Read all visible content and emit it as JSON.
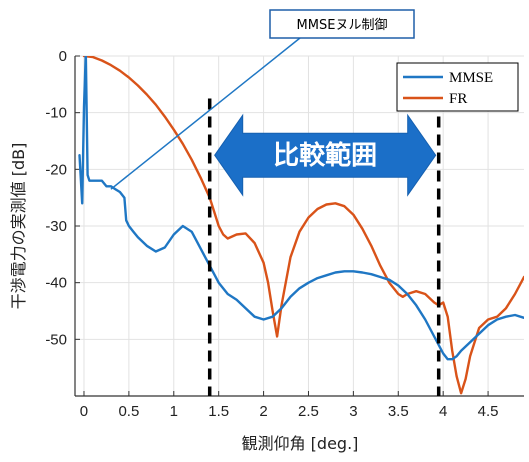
{
  "chart_data": {
    "type": "line",
    "xlabel": "観測仰角 [deg.]",
    "ylabel": "干渉電力の実測値 [dB]",
    "xlim": [
      -0.1,
      4.9
    ],
    "ylim": [
      -60,
      0
    ],
    "x_ticks": [
      0,
      0.5,
      1,
      1.5,
      2,
      2.5,
      3,
      3.5,
      4,
      4.5
    ],
    "x_tick_labels": [
      "0",
      "0.5",
      "1",
      "1.5",
      "2",
      "2.5",
      "3",
      "3.5",
      "4",
      "4.5"
    ],
    "y_ticks": [
      0,
      -10,
      -20,
      -30,
      -40,
      -50
    ],
    "y_tick_labels": [
      "0",
      "-10",
      "-20",
      "-30",
      "-40",
      "-50"
    ],
    "grid": true,
    "legend_position": "top-right",
    "series": [
      {
        "name": "MMSE",
        "color": "#1f77c4",
        "x": [
          -0.05,
          -0.02,
          0.0,
          0.02,
          0.04,
          0.06,
          0.08,
          0.1,
          0.15,
          0.2,
          0.25,
          0.3,
          0.35,
          0.4,
          0.45,
          0.47,
          0.5,
          0.55,
          0.6,
          0.7,
          0.8,
          0.9,
          1.0,
          1.1,
          1.2,
          1.3,
          1.4,
          1.5,
          1.6,
          1.7,
          1.8,
          1.9,
          2.0,
          2.1,
          2.2,
          2.3,
          2.4,
          2.5,
          2.6,
          2.7,
          2.8,
          2.9,
          3.0,
          3.1,
          3.2,
          3.3,
          3.4,
          3.5,
          3.6,
          3.7,
          3.8,
          3.9,
          4.0,
          4.05,
          4.1,
          4.15,
          4.2,
          4.3,
          4.4,
          4.5,
          4.6,
          4.7,
          4.8,
          4.9
        ],
        "y": [
          -17.5,
          -26,
          -9,
          0.5,
          -21,
          -22,
          -22,
          -22,
          -22,
          -22,
          -23,
          -23,
          -23.5,
          -24,
          -25,
          -29,
          -30,
          -31,
          -32,
          -33.5,
          -34.5,
          -33.8,
          -31.5,
          -30,
          -31,
          -34,
          -37,
          -40,
          -42,
          -43,
          -44.5,
          -46,
          -46.5,
          -46,
          -44.5,
          -42.5,
          -41,
          -40,
          -39.2,
          -38.7,
          -38.2,
          -38,
          -38,
          -38.2,
          -38.5,
          -39,
          -39.5,
          -40.5,
          -42,
          -44,
          -46.5,
          -49.5,
          -52.5,
          -53.5,
          -53.5,
          -53,
          -52,
          -50.5,
          -49,
          -47.5,
          -46.5,
          -46,
          -45.7,
          -46.2
        ]
      },
      {
        "name": "FR",
        "color": "#d95319",
        "x": [
          0.0,
          0.1,
          0.2,
          0.3,
          0.4,
          0.5,
          0.6,
          0.7,
          0.8,
          0.9,
          1.0,
          1.1,
          1.2,
          1.3,
          1.4,
          1.45,
          1.5,
          1.55,
          1.6,
          1.7,
          1.8,
          1.9,
          2.0,
          2.05,
          2.1,
          2.15,
          2.2,
          2.3,
          2.4,
          2.5,
          2.6,
          2.7,
          2.8,
          2.9,
          3.0,
          3.1,
          3.2,
          3.3,
          3.4,
          3.5,
          3.55,
          3.6,
          3.7,
          3.8,
          3.9,
          3.95,
          4.0,
          4.05,
          4.1,
          4.15,
          4.2,
          4.25,
          4.3,
          4.4,
          4.5,
          4.6,
          4.7,
          4.8,
          4.9
        ],
        "y": [
          0.0,
          -0.2,
          -0.8,
          -1.6,
          -2.6,
          -3.8,
          -5.2,
          -6.8,
          -8.6,
          -10.7,
          -13.0,
          -15.5,
          -18.3,
          -21.5,
          -25.0,
          -27.5,
          -30.0,
          -31.5,
          -32.2,
          -31.5,
          -31.3,
          -33.0,
          -36.5,
          -40.0,
          -45.0,
          -49.5,
          -44.0,
          -35.5,
          -31.0,
          -28.5,
          -27.0,
          -26.2,
          -26.0,
          -26.5,
          -28.0,
          -30.5,
          -33.5,
          -37.0,
          -40.0,
          -42.0,
          -42.5,
          -42.0,
          -41.5,
          -42.0,
          -43.5,
          -44.0,
          -43.5,
          -46.0,
          -52.0,
          -56.5,
          -59.5,
          -57.0,
          -53.0,
          -48.0,
          -46.5,
          -46.0,
          -44.5,
          -42.0,
          -39.0
        ]
      }
    ],
    "vlines": [
      1.4,
      3.95
    ],
    "range_arrow": {
      "label": "比較範囲",
      "from": 1.4,
      "to": 3.95,
      "y": -17.5
    },
    "callout": {
      "label": "MMSEヌル制御",
      "target_x": 0.3,
      "target_y": -23.5
    }
  }
}
